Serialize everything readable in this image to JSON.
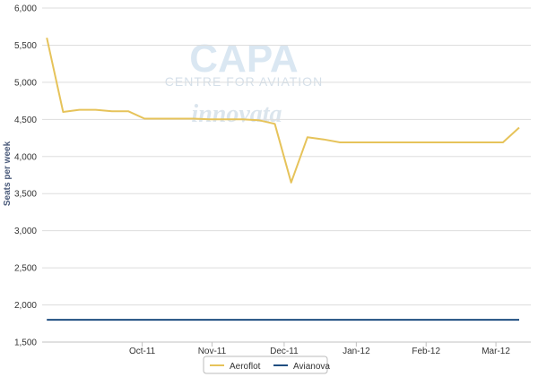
{
  "watermark": {
    "brand": "CAPA",
    "brand_sub": "CENTRE FOR AVIATION",
    "partner": "innovata"
  },
  "chart_data": {
    "type": "line",
    "title": "",
    "xlabel": "",
    "ylabel": "Seats per week",
    "ylim": [
      1500,
      6000
    ],
    "yticks": [
      1500,
      2000,
      2500,
      3000,
      3500,
      4000,
      4500,
      5000,
      5500,
      6000
    ],
    "ytick_labels": [
      "1,500",
      "2,000",
      "2,500",
      "3,000",
      "3,500",
      "4,000",
      "4,500",
      "5,000",
      "5,500",
      "6,000"
    ],
    "x_categories": [
      "Oct-11",
      "Nov-11",
      "Dec-11",
      "Jan-12",
      "Feb-12",
      "Mar-12"
    ],
    "grid": true,
    "legend_position": "bottom-center",
    "series": [
      {
        "name": "Aeroflot",
        "color": "#e6c35a",
        "x": [
          "2011-09-05",
          "2011-09-12",
          "2011-09-19",
          "2011-09-26",
          "2011-10-03",
          "2011-10-10",
          "2011-10-17",
          "2011-10-24",
          "2011-10-31",
          "2011-11-07",
          "2011-11-14",
          "2011-11-21",
          "2011-11-28",
          "2011-12-05",
          "2011-12-12",
          "2011-12-19",
          "2011-12-26",
          "2012-01-02",
          "2012-01-09",
          "2012-01-16",
          "2012-01-23",
          "2012-01-30",
          "2012-02-06",
          "2012-02-13",
          "2012-02-20",
          "2012-02-27",
          "2012-03-05",
          "2012-03-12",
          "2012-03-19",
          "2012-03-26"
        ],
        "values": [
          5600,
          4600,
          4630,
          4630,
          4610,
          4610,
          4510,
          4510,
          4510,
          4510,
          4500,
          4500,
          4500,
          4490,
          4440,
          3650,
          4260,
          4230,
          4190,
          4190,
          4190,
          4190,
          4190,
          4190,
          4190,
          4190,
          4190,
          4190,
          4190,
          4390
        ]
      },
      {
        "name": "Avianova",
        "color": "#1f4e80",
        "x": [
          "2011-09-05",
          "2011-09-12",
          "2011-09-19",
          "2011-09-26",
          "2011-10-03",
          "2011-10-10",
          "2011-10-17",
          "2011-10-24",
          "2011-10-31",
          "2011-11-07",
          "2011-11-14",
          "2011-11-21",
          "2011-11-28",
          "2011-12-05",
          "2011-12-12",
          "2011-12-19",
          "2011-12-26",
          "2012-01-02",
          "2012-01-09",
          "2012-01-16",
          "2012-01-23",
          "2012-01-30",
          "2012-02-06",
          "2012-02-13",
          "2012-02-20",
          "2012-02-27",
          "2012-03-05",
          "2012-03-12",
          "2012-03-19",
          "2012-03-26"
        ],
        "values": [
          1800,
          1800,
          1800,
          1800,
          1800,
          1800,
          1800,
          1800,
          1800,
          1800,
          1800,
          1800,
          1800,
          1800,
          1800,
          1800,
          1800,
          1800,
          1800,
          1800,
          1800,
          1800,
          1800,
          1800,
          1800,
          1800,
          1800,
          1800,
          1800,
          1800
        ]
      }
    ]
  }
}
